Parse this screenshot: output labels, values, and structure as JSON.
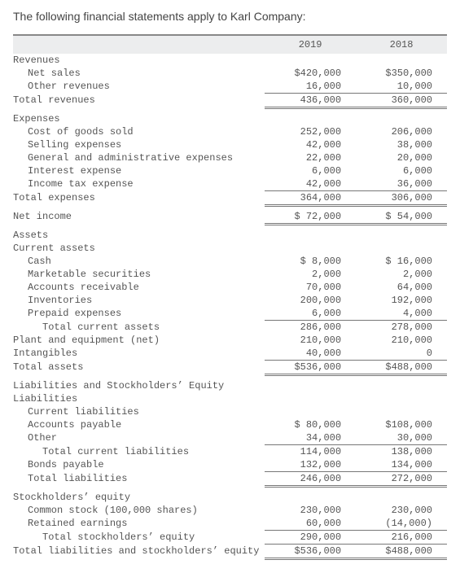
{
  "title": "The following financial statements apply to Karl Company:",
  "years": {
    "col1": "2019",
    "col2": "2018"
  },
  "rows": [
    {
      "label": "Revenues",
      "indent": 0,
      "v1": "",
      "v2": "",
      "rule": ""
    },
    {
      "label": "Net sales",
      "indent": 1,
      "v1": "$420,000",
      "v2": "$350,000",
      "rule": ""
    },
    {
      "label": "Other revenues",
      "indent": 1,
      "v1": "16,000",
      "v2": "10,000",
      "rule": "thin"
    },
    {
      "label": "Total revenues",
      "indent": 0,
      "v1": "436,000",
      "v2": "360,000",
      "rule": "dbl"
    },
    {
      "label": "Expenses",
      "indent": 0,
      "v1": "",
      "v2": "",
      "rule": ""
    },
    {
      "label": "Cost of goods sold",
      "indent": 1,
      "v1": "252,000",
      "v2": "206,000",
      "rule": ""
    },
    {
      "label": "Selling expenses",
      "indent": 1,
      "v1": "42,000",
      "v2": "38,000",
      "rule": ""
    },
    {
      "label": "General and administrative expenses",
      "indent": 1,
      "v1": "22,000",
      "v2": "20,000",
      "rule": ""
    },
    {
      "label": "Interest expense",
      "indent": 1,
      "v1": "6,000",
      "v2": "6,000",
      "rule": ""
    },
    {
      "label": "Income tax expense",
      "indent": 1,
      "v1": "42,000",
      "v2": "36,000",
      "rule": "thin"
    },
    {
      "label": "Total expenses",
      "indent": 0,
      "v1": "364,000",
      "v2": "306,000",
      "rule": "dbl"
    },
    {
      "label": "Net income",
      "indent": 0,
      "v1": "$ 72,000",
      "v2": "$ 54,000",
      "rule": "dbl"
    },
    {
      "label": "Assets",
      "indent": 0,
      "v1": "",
      "v2": "",
      "rule": ""
    },
    {
      "label": "Current assets",
      "indent": 0,
      "v1": "",
      "v2": "",
      "rule": ""
    },
    {
      "label": "Cash",
      "indent": 1,
      "v1": "$  8,000",
      "v2": "$ 16,000",
      "rule": ""
    },
    {
      "label": "Marketable securities",
      "indent": 1,
      "v1": "2,000",
      "v2": "2,000",
      "rule": ""
    },
    {
      "label": "Accounts receivable",
      "indent": 1,
      "v1": "70,000",
      "v2": "64,000",
      "rule": ""
    },
    {
      "label": "Inventories",
      "indent": 1,
      "v1": "200,000",
      "v2": "192,000",
      "rule": ""
    },
    {
      "label": "Prepaid expenses",
      "indent": 1,
      "v1": "6,000",
      "v2": "4,000",
      "rule": "thin"
    },
    {
      "label": "Total current assets",
      "indent": 2,
      "v1": "286,000",
      "v2": "278,000",
      "rule": ""
    },
    {
      "label": "Plant and equipment (net)",
      "indent": 0,
      "v1": "210,000",
      "v2": "210,000",
      "rule": ""
    },
    {
      "label": "Intangibles",
      "indent": 0,
      "v1": "40,000",
      "v2": "0",
      "rule": "thin"
    },
    {
      "label": "Total assets",
      "indent": 0,
      "v1": "$536,000",
      "v2": "$488,000",
      "rule": "dbl"
    },
    {
      "label": "Liabilities and Stockholders’ Equity",
      "indent": 0,
      "v1": "",
      "v2": "",
      "rule": ""
    },
    {
      "label": "Liabilities",
      "indent": 0,
      "v1": "",
      "v2": "",
      "rule": ""
    },
    {
      "label": "Current liabilities",
      "indent": 1,
      "v1": "",
      "v2": "",
      "rule": ""
    },
    {
      "label": "Accounts payable",
      "indent": 1,
      "v1": "$ 80,000",
      "v2": "$108,000",
      "rule": ""
    },
    {
      "label": "Other",
      "indent": 1,
      "v1": "34,000",
      "v2": "30,000",
      "rule": "thin"
    },
    {
      "label": "Total current liabilities",
      "indent": 2,
      "v1": "114,000",
      "v2": "138,000",
      "rule": ""
    },
    {
      "label": "Bonds payable",
      "indent": 1,
      "v1": "132,000",
      "v2": "134,000",
      "rule": "thin"
    },
    {
      "label": "Total liabilities",
      "indent": 1,
      "v1": "246,000",
      "v2": "272,000",
      "rule": "dbl"
    },
    {
      "label": "Stockholders’ equity",
      "indent": 0,
      "v1": "",
      "v2": "",
      "rule": ""
    },
    {
      "label": "Common stock (100,000 shares)",
      "indent": 1,
      "v1": "230,000",
      "v2": "230,000",
      "rule": ""
    },
    {
      "label": "Retained earnings",
      "indent": 1,
      "v1": "60,000",
      "v2": "(14,000)",
      "rule": "thin"
    },
    {
      "label": "Total stockholders’ equity",
      "indent": 2,
      "v1": "290,000",
      "v2": "216,000",
      "rule": "thin"
    },
    {
      "label": "Total liabilities and stockholders’ equity",
      "indent": 0,
      "v1": "$536,000",
      "v2": "$488,000",
      "rule": "dbl"
    }
  ]
}
